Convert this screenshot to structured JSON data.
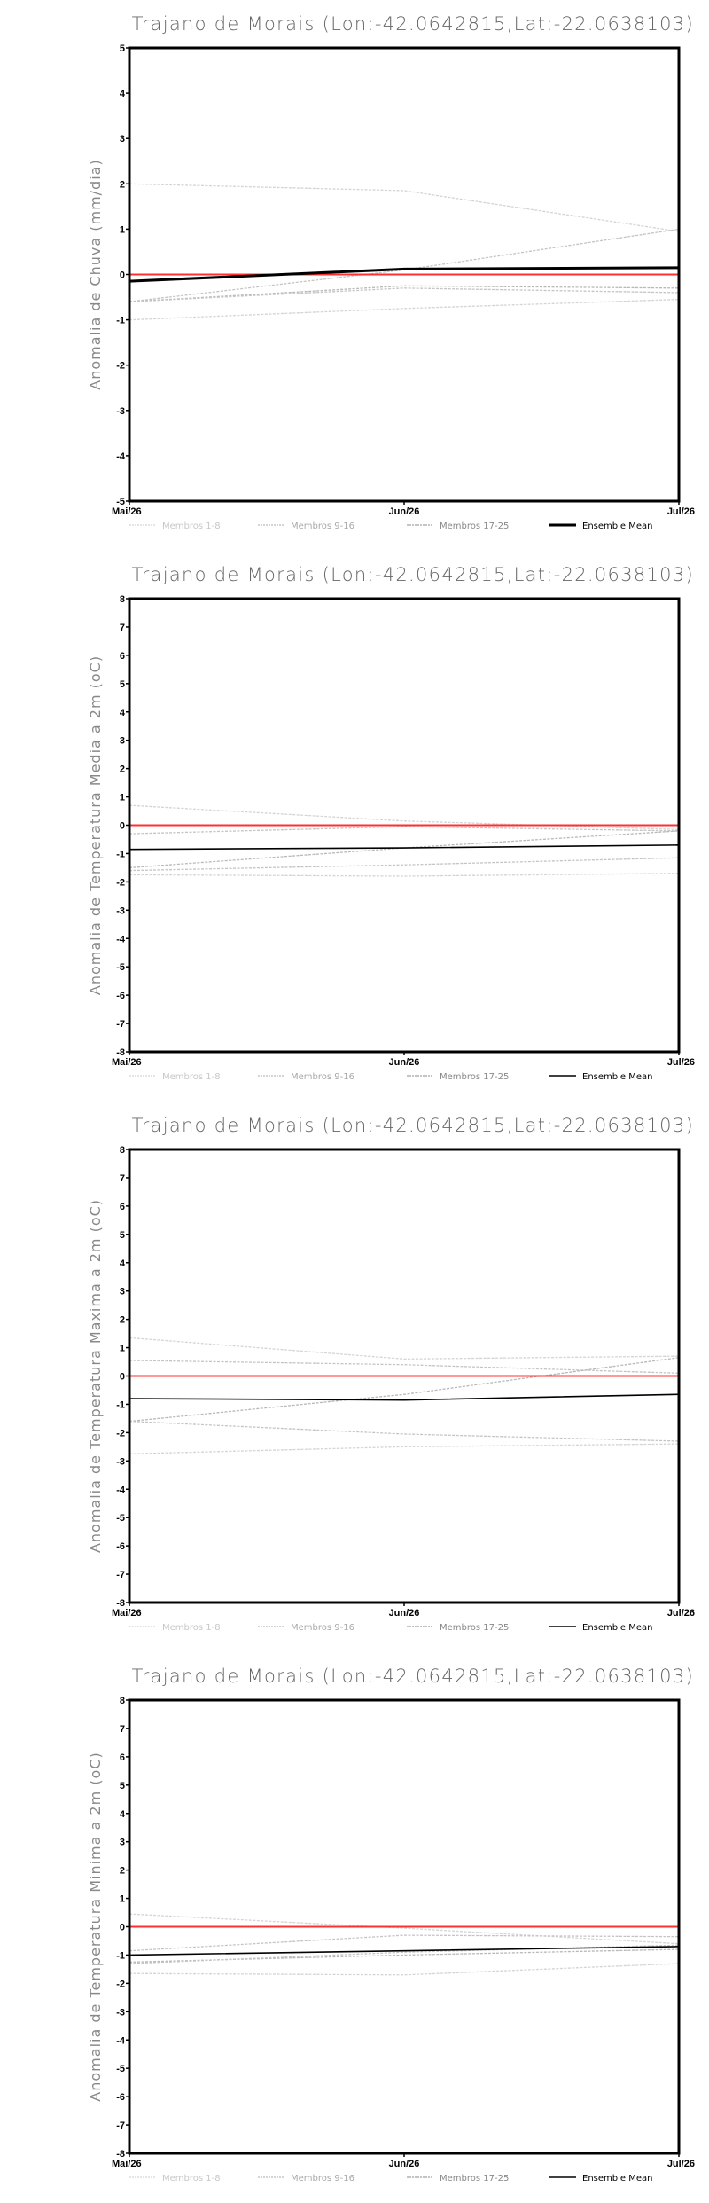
{
  "colors": {
    "members_1_8": "#d4d4d4",
    "members_9_16": "#c4c4c4",
    "members_17_25": "#b8b8b8",
    "mean": "#000000",
    "zero": "#ff3030",
    "legend_1_8": "#c8c8c8",
    "legend_9_16": "#a8a8a8",
    "legend_17_25": "#888888"
  },
  "legend": [
    "Membros 1-8",
    "Membros 9-16",
    "Membros 17-25",
    "Ensemble Mean"
  ],
  "chart_data": [
    {
      "type": "line",
      "title": "Trajano de Morais (Lon:-42.0642815,Lat:-22.0638103)",
      "ylabel": "Anomalia de Chuva (mm/dia)",
      "xlabel": "",
      "categories": [
        "Mai/26",
        "Jun/26",
        "Jul/26"
      ],
      "ylim": [
        -5,
        5
      ],
      "yticks": [
        "-5",
        "-4",
        "-3",
        "-2",
        "-1",
        "0",
        "1",
        "2",
        "3",
        "4",
        "5"
      ],
      "reference_line": 0,
      "series": [
        {
          "name": "Membros",
          "values": [
            2.0,
            1.85,
            0.95
          ]
        },
        {
          "name": "Membros",
          "values": [
            -0.6,
            0.1,
            1.0
          ]
        },
        {
          "name": "Membros",
          "values": [
            -0.6,
            -0.25,
            -0.3
          ]
        },
        {
          "name": "Membros",
          "values": [
            -0.6,
            -0.3,
            -0.4
          ]
        },
        {
          "name": "Membros",
          "values": [
            -1.0,
            -0.75,
            -0.55
          ]
        },
        {
          "name": "Ensemble Mean",
          "values": [
            -0.15,
            0.12,
            0.15
          ]
        }
      ],
      "legend": "bottom"
    },
    {
      "type": "line",
      "title": "Trajano de Morais (Lon:-42.0642815,Lat:-22.0638103)",
      "ylabel": "Anomalia de Temperatura Media a 2m (oC)",
      "xlabel": "",
      "categories": [
        "Mai/26",
        "Jun/26",
        "Jul/26"
      ],
      "ylim": [
        -8,
        8
      ],
      "yticks": [
        "-8",
        "-7",
        "-6",
        "-5",
        "-4",
        "-3",
        "-2",
        "-1",
        "0",
        "1",
        "2",
        "3",
        "4",
        "5",
        "6",
        "7",
        "8"
      ],
      "reference_line": 0,
      "series": [
        {
          "name": "Membros",
          "values": [
            0.7,
            0.15,
            -0.15
          ]
        },
        {
          "name": "Membros",
          "values": [
            -0.3,
            -0.05,
            -0.2
          ]
        },
        {
          "name": "Membros",
          "values": [
            -1.5,
            -0.8,
            -0.2
          ]
        },
        {
          "name": "Membros",
          "values": [
            -1.6,
            -1.4,
            -1.15
          ]
        },
        {
          "name": "Membros",
          "values": [
            -1.75,
            -1.8,
            -1.7
          ]
        },
        {
          "name": "Ensemble Mean",
          "values": [
            -0.85,
            -0.8,
            -0.7
          ]
        }
      ],
      "legend": "bottom"
    },
    {
      "type": "line",
      "title": "Trajano de Morais (Lon:-42.0642815,Lat:-22.0638103)",
      "ylabel": "Anomalia de Temperatura Maxima a 2m (oC)",
      "xlabel": "",
      "categories": [
        "Mai/26",
        "Jun/26",
        "Jul/26"
      ],
      "ylim": [
        -8,
        8
      ],
      "yticks": [
        "-8",
        "-7",
        "-6",
        "-5",
        "-4",
        "-3",
        "-2",
        "-1",
        "0",
        "1",
        "2",
        "3",
        "4",
        "5",
        "6",
        "7",
        "8"
      ],
      "reference_line": 0,
      "series": [
        {
          "name": "Membros",
          "values": [
            1.35,
            0.6,
            0.7
          ]
        },
        {
          "name": "Membros",
          "values": [
            0.55,
            0.4,
            0.1
          ]
        },
        {
          "name": "Membros",
          "values": [
            -1.6,
            -0.65,
            0.65
          ]
        },
        {
          "name": "Membros",
          "values": [
            -1.6,
            -2.05,
            -2.3
          ]
        },
        {
          "name": "Membros",
          "values": [
            -2.75,
            -2.5,
            -2.4
          ]
        },
        {
          "name": "Ensemble Mean",
          "values": [
            -0.8,
            -0.85,
            -0.65
          ]
        }
      ],
      "legend": "bottom"
    },
    {
      "type": "line",
      "title": "Trajano de Morais (Lon:-42.0642815,Lat:-22.0638103)",
      "ylabel": "Anomalia de Temperatura Minima a 2m (oC)",
      "xlabel": "",
      "categories": [
        "Mai/26",
        "Jun/26",
        "Jul/26"
      ],
      "ylim": [
        -8,
        8
      ],
      "yticks": [
        "-8",
        "-7",
        "-6",
        "-5",
        "-4",
        "-3",
        "-2",
        "-1",
        "0",
        "1",
        "2",
        "3",
        "4",
        "5",
        "6",
        "7",
        "8"
      ],
      "reference_line": 0,
      "series": [
        {
          "name": "Membros",
          "values": [
            0.45,
            -0.05,
            -0.6
          ]
        },
        {
          "name": "Membros",
          "values": [
            -0.85,
            -0.3,
            -0.35
          ]
        },
        {
          "name": "Membros",
          "values": [
            -1.25,
            -1.0,
            -0.8
          ]
        },
        {
          "name": "Membros",
          "values": [
            -1.3,
            -0.9,
            -0.65
          ]
        },
        {
          "name": "Membros",
          "values": [
            -1.65,
            -1.7,
            -1.3
          ]
        },
        {
          "name": "Ensemble Mean",
          "values": [
            -1.0,
            -0.85,
            -0.7
          ]
        }
      ],
      "legend": "bottom"
    }
  ]
}
